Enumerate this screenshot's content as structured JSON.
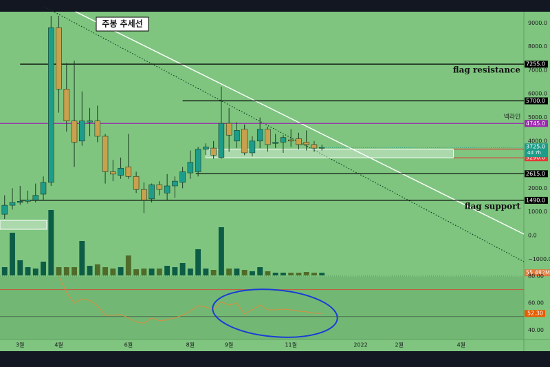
{
  "chart_data": {
    "type": "candlestick",
    "title": "주봉 추세선",
    "x": [
      0,
      1,
      2,
      3,
      4,
      5,
      6,
      7,
      8,
      9,
      10,
      11,
      12,
      13,
      14,
      15,
      16,
      17,
      18,
      19,
      20,
      21,
      22,
      23,
      24,
      25,
      26,
      27,
      28,
      29,
      30,
      31,
      32,
      33,
      34,
      35,
      36,
      37,
      38,
      39,
      40,
      41
    ],
    "xlim": [
      -0.6,
      67.1
    ],
    "xticks": [
      {
        "value": 2,
        "label": "3월"
      },
      {
        "value": 7,
        "label": "4월"
      },
      {
        "value": 16,
        "label": "6월"
      },
      {
        "value": 24,
        "label": "8월"
      },
      {
        "value": 29,
        "label": "9월"
      },
      {
        "value": 37,
        "label": "11월"
      },
      {
        "value": 46,
        "label": "2022"
      },
      {
        "value": 51,
        "label": "2월"
      },
      {
        "value": 59,
        "label": "4월"
      }
    ],
    "open": [
      900,
      1280,
      1400,
      1450,
      1500,
      1750,
      2250,
      8800,
      6200,
      4850,
      4000,
      4800,
      4850,
      4200,
      2700,
      2550,
      2900,
      2500,
      1950,
      1550,
      2150,
      1800,
      2100,
      2250,
      2650,
      2700,
      3650,
      3700,
      3300,
      4750,
      4000,
      4500,
      3500,
      4000,
      4500,
      3900,
      3950,
      4050,
      4100,
      3950,
      3850,
      3700
    ],
    "high": [
      1700,
      2000,
      2100,
      1900,
      2200,
      2500,
      9300,
      9300,
      7300,
      7400,
      6100,
      5400,
      5500,
      4300,
      3200,
      3300,
      4300,
      2700,
      2250,
      2200,
      2300,
      2600,
      2500,
      2900,
      3600,
      3750,
      3900,
      4000,
      6300,
      5400,
      4800,
      4700,
      4200,
      5000,
      4600,
      4300,
      4250,
      4500,
      4350,
      4450,
      4000,
      3850
    ],
    "low": [
      700,
      1100,
      1300,
      1350,
      1400,
      1500,
      2100,
      5200,
      4400,
      2900,
      3800,
      4200,
      3950,
      2200,
      2300,
      2400,
      2400,
      1800,
      950,
      1400,
      1700,
      1500,
      1600,
      2000,
      2400,
      2500,
      3400,
      3250,
      3250,
      3550,
      3700,
      3400,
      3350,
      3700,
      3550,
      3700,
      3500,
      3750,
      3650,
      3600,
      3550,
      3600
    ],
    "close": [
      1280,
      1400,
      1450,
      1500,
      1700,
      2250,
      8800,
      6200,
      4850,
      3950,
      4850,
      4850,
      4200,
      2700,
      2600,
      2850,
      2500,
      1950,
      1500,
      2150,
      1950,
      2100,
      2300,
      2700,
      3100,
      3650,
      3750,
      3400,
      4750,
      4250,
      4450,
      3500,
      4000,
      4500,
      3850,
      3950,
      4150,
      4000,
      3850,
      3850,
      3700,
      3725
    ],
    "up_color": "#1e9c8a",
    "down_color": "#c9a14e",
    "ylim": [
      -1690,
      9475
    ],
    "yticks": [
      {
        "value": -1000,
        "label": "−1000.0"
      },
      {
        "value": 0,
        "label": "0.0"
      },
      {
        "value": 1000,
        "label": "1000.0"
      },
      {
        "value": 2000,
        "label": "2000.0"
      },
      {
        "value": 4000,
        "label": "4000.0"
      },
      {
        "value": 5000,
        "label": "5000.0"
      },
      {
        "value": 6000,
        "label": "6000.0"
      },
      {
        "value": 7000,
        "label": "7000.0"
      },
      {
        "value": 8000,
        "label": "8000.0"
      },
      {
        "value": 9000,
        "label": "9000.0"
      }
    ],
    "levels": [
      {
        "value": 7255,
        "label": "7255.0",
        "color": "#000000",
        "from": 2
      },
      {
        "value": 5700,
        "label": "5700.0",
        "color": "#000000",
        "from": 23
      },
      {
        "value": 4745,
        "label": "4745.0",
        "color": "#9c27b0",
        "from": -0.6
      },
      {
        "value": 3660,
        "label": "3660.0",
        "color": "#e53935",
        "from": 58
      },
      {
        "value": 3290,
        "label": "3290.0",
        "color": "#e53935",
        "from": 58
      },
      {
        "value": 2615,
        "label": "2615.0",
        "color": "#000000",
        "from": 24.7
      },
      {
        "value": 1490,
        "label": "1490.0",
        "color": "#000000",
        "from": 2
      }
    ],
    "annotations": [
      "flag resistance",
      "flag support",
      "넥라인"
    ],
    "last_price": {
      "value": 3725,
      "label": "3725.0"
    },
    "countdown": "4d 7h",
    "volume": {
      "values": [
        175,
        905,
        321,
        175,
        146,
        292,
        1387,
        175,
        175,
        175,
        730,
        204,
        234,
        175,
        146,
        175,
        423,
        131,
        146,
        146,
        146,
        204,
        175,
        263,
        146,
        555,
        146,
        117,
        1022,
        146,
        146,
        117,
        88,
        175,
        88,
        58,
        58,
        58,
        58,
        73,
        58,
        55.482
      ],
      "ylim": [
        0,
        1460
      ],
      "last": {
        "value": 55.482,
        "label": "55.482M"
      },
      "up_color": "#0d5c45",
      "down_color": "#4f6b2a"
    },
    "rsi": {
      "values": [
        null,
        null,
        null,
        null,
        null,
        null,
        null,
        80,
        68,
        60,
        63,
        62,
        58,
        51,
        51,
        51.5,
        49,
        46,
        45,
        49,
        47,
        47.5,
        49,
        51,
        54,
        58,
        57,
        55,
        61,
        58.5,
        60,
        52,
        55,
        58.5,
        55,
        55,
        55.5,
        55,
        54,
        53.5,
        52.5,
        52.3
      ],
      "ylim": [
        33,
        79.5
      ],
      "yticks": [
        {
          "value": 80,
          "label": "80.00"
        },
        {
          "value": 60,
          "label": "60.00"
        },
        {
          "value": 40,
          "label": "40.00"
        }
      ],
      "levels": [
        70,
        50
      ],
      "last": {
        "value": 52.3,
        "label": "52.30"
      },
      "color": "#e08a3c"
    }
  }
}
